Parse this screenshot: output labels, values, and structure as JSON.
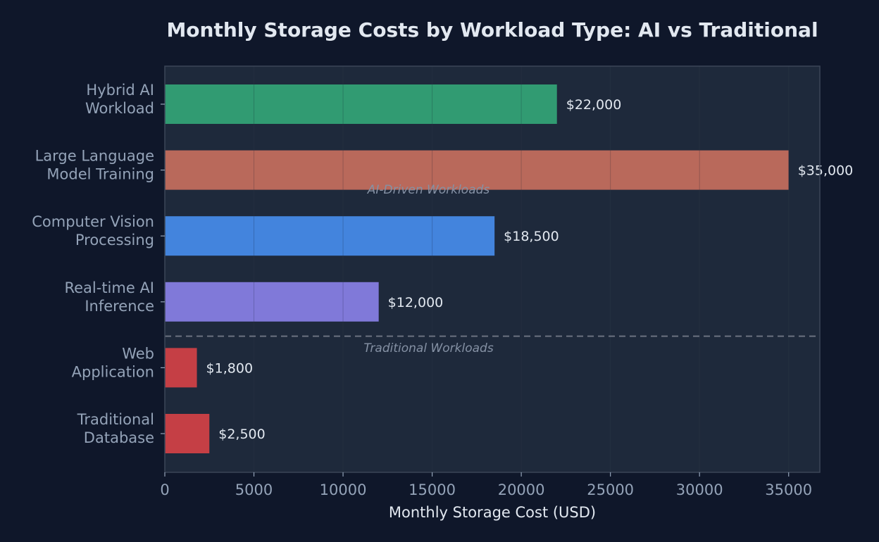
{
  "chart_data": {
    "type": "bar",
    "orientation": "horizontal",
    "title": "Monthly Storage Costs by Workload Type: AI vs Traditional",
    "xlabel": "Monthly Storage Cost (USD)",
    "ylabel": "",
    "xlim": [
      0,
      36750
    ],
    "xticks": [
      0,
      5000,
      10000,
      15000,
      20000,
      25000,
      30000,
      35000
    ],
    "grid": true,
    "categories": [
      [
        "Hybrid AI",
        "Workload"
      ],
      [
        "Large Language",
        "Model Training"
      ],
      [
        "Computer Vision",
        "Processing"
      ],
      [
        "Real-time AI",
        "Inference"
      ],
      [
        "Web",
        "Application"
      ],
      [
        "Traditional",
        "Database"
      ]
    ],
    "values": [
      22000,
      35000,
      18500,
      12000,
      1800,
      2500
    ],
    "value_labels": [
      "$22,000",
      "$35,000",
      "$18,500",
      "$12,000",
      "$1,800",
      "$2,500"
    ],
    "bar_colors": [
      "#319b72",
      "#b9695b",
      "#4384dd",
      "#8079d9",
      "#c53f45",
      "#c53f45"
    ],
    "group_separator_after_index": 3,
    "annotations": [
      {
        "text": "AI-Driven Workloads",
        "group": "ai"
      },
      {
        "text": "Traditional Workloads",
        "group": "traditional"
      }
    ]
  },
  "colors": {
    "page_background": "#0f172a",
    "plot_background": "#1e293b",
    "plot_border": "#3b4658",
    "title": "#e2e8f0",
    "axis_text": "#94a3b8",
    "value_label": "#e2e8f0",
    "annotation": "#8591a4",
    "separator": "#6b7280",
    "grid": "#2b3647"
  }
}
